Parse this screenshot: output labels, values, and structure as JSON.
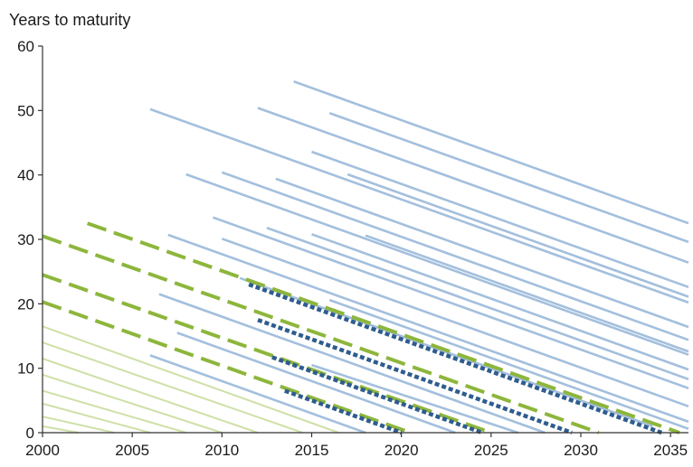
{
  "chart_data": {
    "type": "line",
    "title": "",
    "xlabel": "",
    "ylabel": "Years to maturity",
    "xlim": [
      2000,
      2036
    ],
    "ylim": [
      0,
      60
    ],
    "x_ticks": [
      "2000",
      "2005",
      "2010",
      "2015",
      "2020",
      "2025",
      "2030",
      "2035"
    ],
    "y_ticks": [
      "0",
      "10",
      "20",
      "30",
      "40",
      "50",
      "60"
    ],
    "grid": false,
    "legend": "none",
    "colors": {
      "blue_solid": "#a3bfdd",
      "light_green_solid": "#cfe0a7",
      "green_dashed": "#8db63c",
      "navy_dotted": "#2e5c8f"
    },
    "series": [
      {
        "style": "blue_solid",
        "x": [
          2014,
          2036
        ],
        "y": [
          54.5,
          32.5
        ]
      },
      {
        "style": "blue_solid",
        "x": [
          2006,
          2036
        ],
        "y": [
          50.2,
          20.2
        ]
      },
      {
        "style": "blue_solid",
        "x": [
          2012,
          2036
        ],
        "y": [
          50.4,
          26.4
        ]
      },
      {
        "style": "blue_solid",
        "x": [
          2016,
          2036
        ],
        "y": [
          49.6,
          29.6
        ]
      },
      {
        "style": "blue_solid",
        "x": [
          2015,
          2036
        ],
        "y": [
          43.6,
          22.6
        ]
      },
      {
        "style": "blue_solid",
        "x": [
          2008,
          2036
        ],
        "y": [
          40.1,
          12.1
        ]
      },
      {
        "style": "blue_solid",
        "x": [
          2010,
          2036
        ],
        "y": [
          40.4,
          14.4
        ]
      },
      {
        "style": "blue_solid",
        "x": [
          2013,
          2036
        ],
        "y": [
          39.4,
          16.4
        ]
      },
      {
        "style": "blue_solid",
        "x": [
          2017,
          2036
        ],
        "y": [
          40.1,
          21.1
        ]
      },
      {
        "style": "blue_solid",
        "x": [
          2009.5,
          2036
        ],
        "y": [
          33.4,
          6.9
        ]
      },
      {
        "style": "blue_solid",
        "x": [
          2010,
          2036
        ],
        "y": [
          30.1,
          4.1
        ]
      },
      {
        "style": "blue_solid",
        "x": [
          2012.5,
          2036
        ],
        "y": [
          31.8,
          8.3
        ]
      },
      {
        "style": "blue_solid",
        "x": [
          2015,
          2036
        ],
        "y": [
          30.8,
          9.8
        ]
      },
      {
        "style": "blue_solid",
        "x": [
          2018,
          2036
        ],
        "y": [
          30.6,
          12.6
        ]
      },
      {
        "style": "blue_solid",
        "x": [
          2007,
          2036
        ],
        "y": [
          30.7,
          1.7
        ]
      },
      {
        "style": "blue_solid",
        "x": [
          2016,
          2036
        ],
        "y": [
          20.6,
          0.6
        ]
      },
      {
        "style": "blue_solid",
        "x": [
          2006.5,
          2028
        ],
        "y": [
          21.5,
          0
        ]
      },
      {
        "style": "blue_solid",
        "x": [
          2011,
          2034
        ],
        "y": [
          24.0,
          1.0
        ]
      },
      {
        "style": "blue_solid",
        "x": [
          2007.5,
          2023
        ],
        "y": [
          15.5,
          0
        ]
      },
      {
        "style": "blue_solid",
        "x": [
          2006,
          2018
        ],
        "y": [
          12.0,
          0
        ]
      },
      {
        "style": "blue_solid",
        "x": [
          2015,
          2026.5
        ],
        "y": [
          10.5,
          0
        ]
      },
      {
        "style": "light_green_solid",
        "x": [
          2000,
          2016.5
        ],
        "y": [
          16.5,
          0
        ]
      },
      {
        "style": "light_green_solid",
        "x": [
          2000,
          2014.5
        ],
        "y": [
          14.0,
          0
        ]
      },
      {
        "style": "light_green_solid",
        "x": [
          2000,
          2012
        ],
        "y": [
          11.5,
          0
        ]
      },
      {
        "style": "light_green_solid",
        "x": [
          2000,
          2010
        ],
        "y": [
          9.0,
          0
        ]
      },
      {
        "style": "light_green_solid",
        "x": [
          2000,
          2008
        ],
        "y": [
          6.5,
          0
        ]
      },
      {
        "style": "light_green_solid",
        "x": [
          2000,
          2006
        ],
        "y": [
          4.5,
          0
        ]
      },
      {
        "style": "light_green_solid",
        "x": [
          2000,
          2004
        ],
        "y": [
          2.5,
          0
        ]
      },
      {
        "style": "light_green_solid",
        "x": [
          2000,
          2002
        ],
        "y": [
          1.0,
          0
        ]
      },
      {
        "style": "green_dashed",
        "x": [
          2002.5,
          2035.5
        ],
        "y": [
          32.5,
          0
        ]
      },
      {
        "style": "green_dashed",
        "x": [
          2000,
          2031
        ],
        "y": [
          30.5,
          0
        ]
      },
      {
        "style": "green_dashed",
        "x": [
          2000,
          2025
        ],
        "y": [
          24.5,
          0
        ]
      },
      {
        "style": "green_dashed",
        "x": [
          2000,
          2020.5
        ],
        "y": [
          20.3,
          0
        ]
      },
      {
        "style": "navy_dotted",
        "x": [
          2011.5,
          2034.5
        ],
        "y": [
          23.0,
          0
        ]
      },
      {
        "style": "navy_dotted",
        "x": [
          2012,
          2029.5
        ],
        "y": [
          17.5,
          0
        ]
      },
      {
        "style": "navy_dotted",
        "x": [
          2012.8,
          2024.5
        ],
        "y": [
          11.7,
          0
        ]
      },
      {
        "style": "navy_dotted",
        "x": [
          2013.5,
          2020
        ],
        "y": [
          6.5,
          0
        ]
      }
    ]
  }
}
